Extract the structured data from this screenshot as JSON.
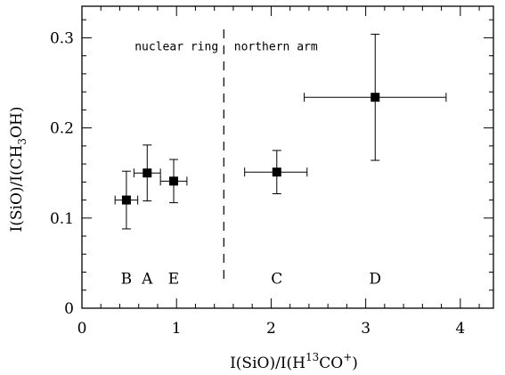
{
  "chart_data": {
    "type": "scatter",
    "title": "",
    "xlabel": {
      "main": "I(SiO)/I(H",
      "sup1": "13",
      "mid": "CO",
      "sup2": "+",
      "tail": ")"
    },
    "ylabel": {
      "main": "I(SiO)/I(CH",
      "sub": "3",
      "tail": "OH)"
    },
    "xlim": [
      0,
      4.35
    ],
    "ylim": [
      0,
      0.335
    ],
    "x_ticks": [
      0,
      1,
      2,
      3,
      4
    ],
    "y_ticks": [
      0,
      0.1,
      0.2,
      0.3
    ],
    "x_tick_labels": [
      "0",
      "1",
      "2",
      "3",
      "4"
    ],
    "y_tick_labels": [
      "0",
      "0.1",
      "0.2",
      "0.3"
    ],
    "grid": false,
    "divider_x": 1.5,
    "region_labels": [
      {
        "text": "nuclear ring",
        "x": 1.0,
        "y": 0.29
      },
      {
        "text": "northern arm",
        "x": 2.05,
        "y": 0.29
      }
    ],
    "points": [
      {
        "label": "B",
        "x": 0.47,
        "y": 0.12,
        "xerr": [
          0.12,
          0.12
        ],
        "yerr": [
          0.032,
          0.032
        ]
      },
      {
        "label": "A",
        "x": 0.69,
        "y": 0.15,
        "xerr": [
          0.14,
          0.14
        ],
        "yerr": [
          0.031,
          0.031
        ]
      },
      {
        "label": "E",
        "x": 0.97,
        "y": 0.141,
        "xerr": [
          0.14,
          0.14
        ],
        "yerr": [
          0.024,
          0.024
        ]
      },
      {
        "label": "C",
        "x": 2.06,
        "y": 0.151,
        "xerr": [
          0.34,
          0.32
        ],
        "yerr": [
          0.024,
          0.024
        ]
      },
      {
        "label": "D",
        "x": 3.1,
        "y": 0.234,
        "xerr": [
          0.75,
          0.75
        ],
        "yerr": [
          0.07,
          0.07
        ]
      }
    ],
    "point_label_y": 0.033
  }
}
